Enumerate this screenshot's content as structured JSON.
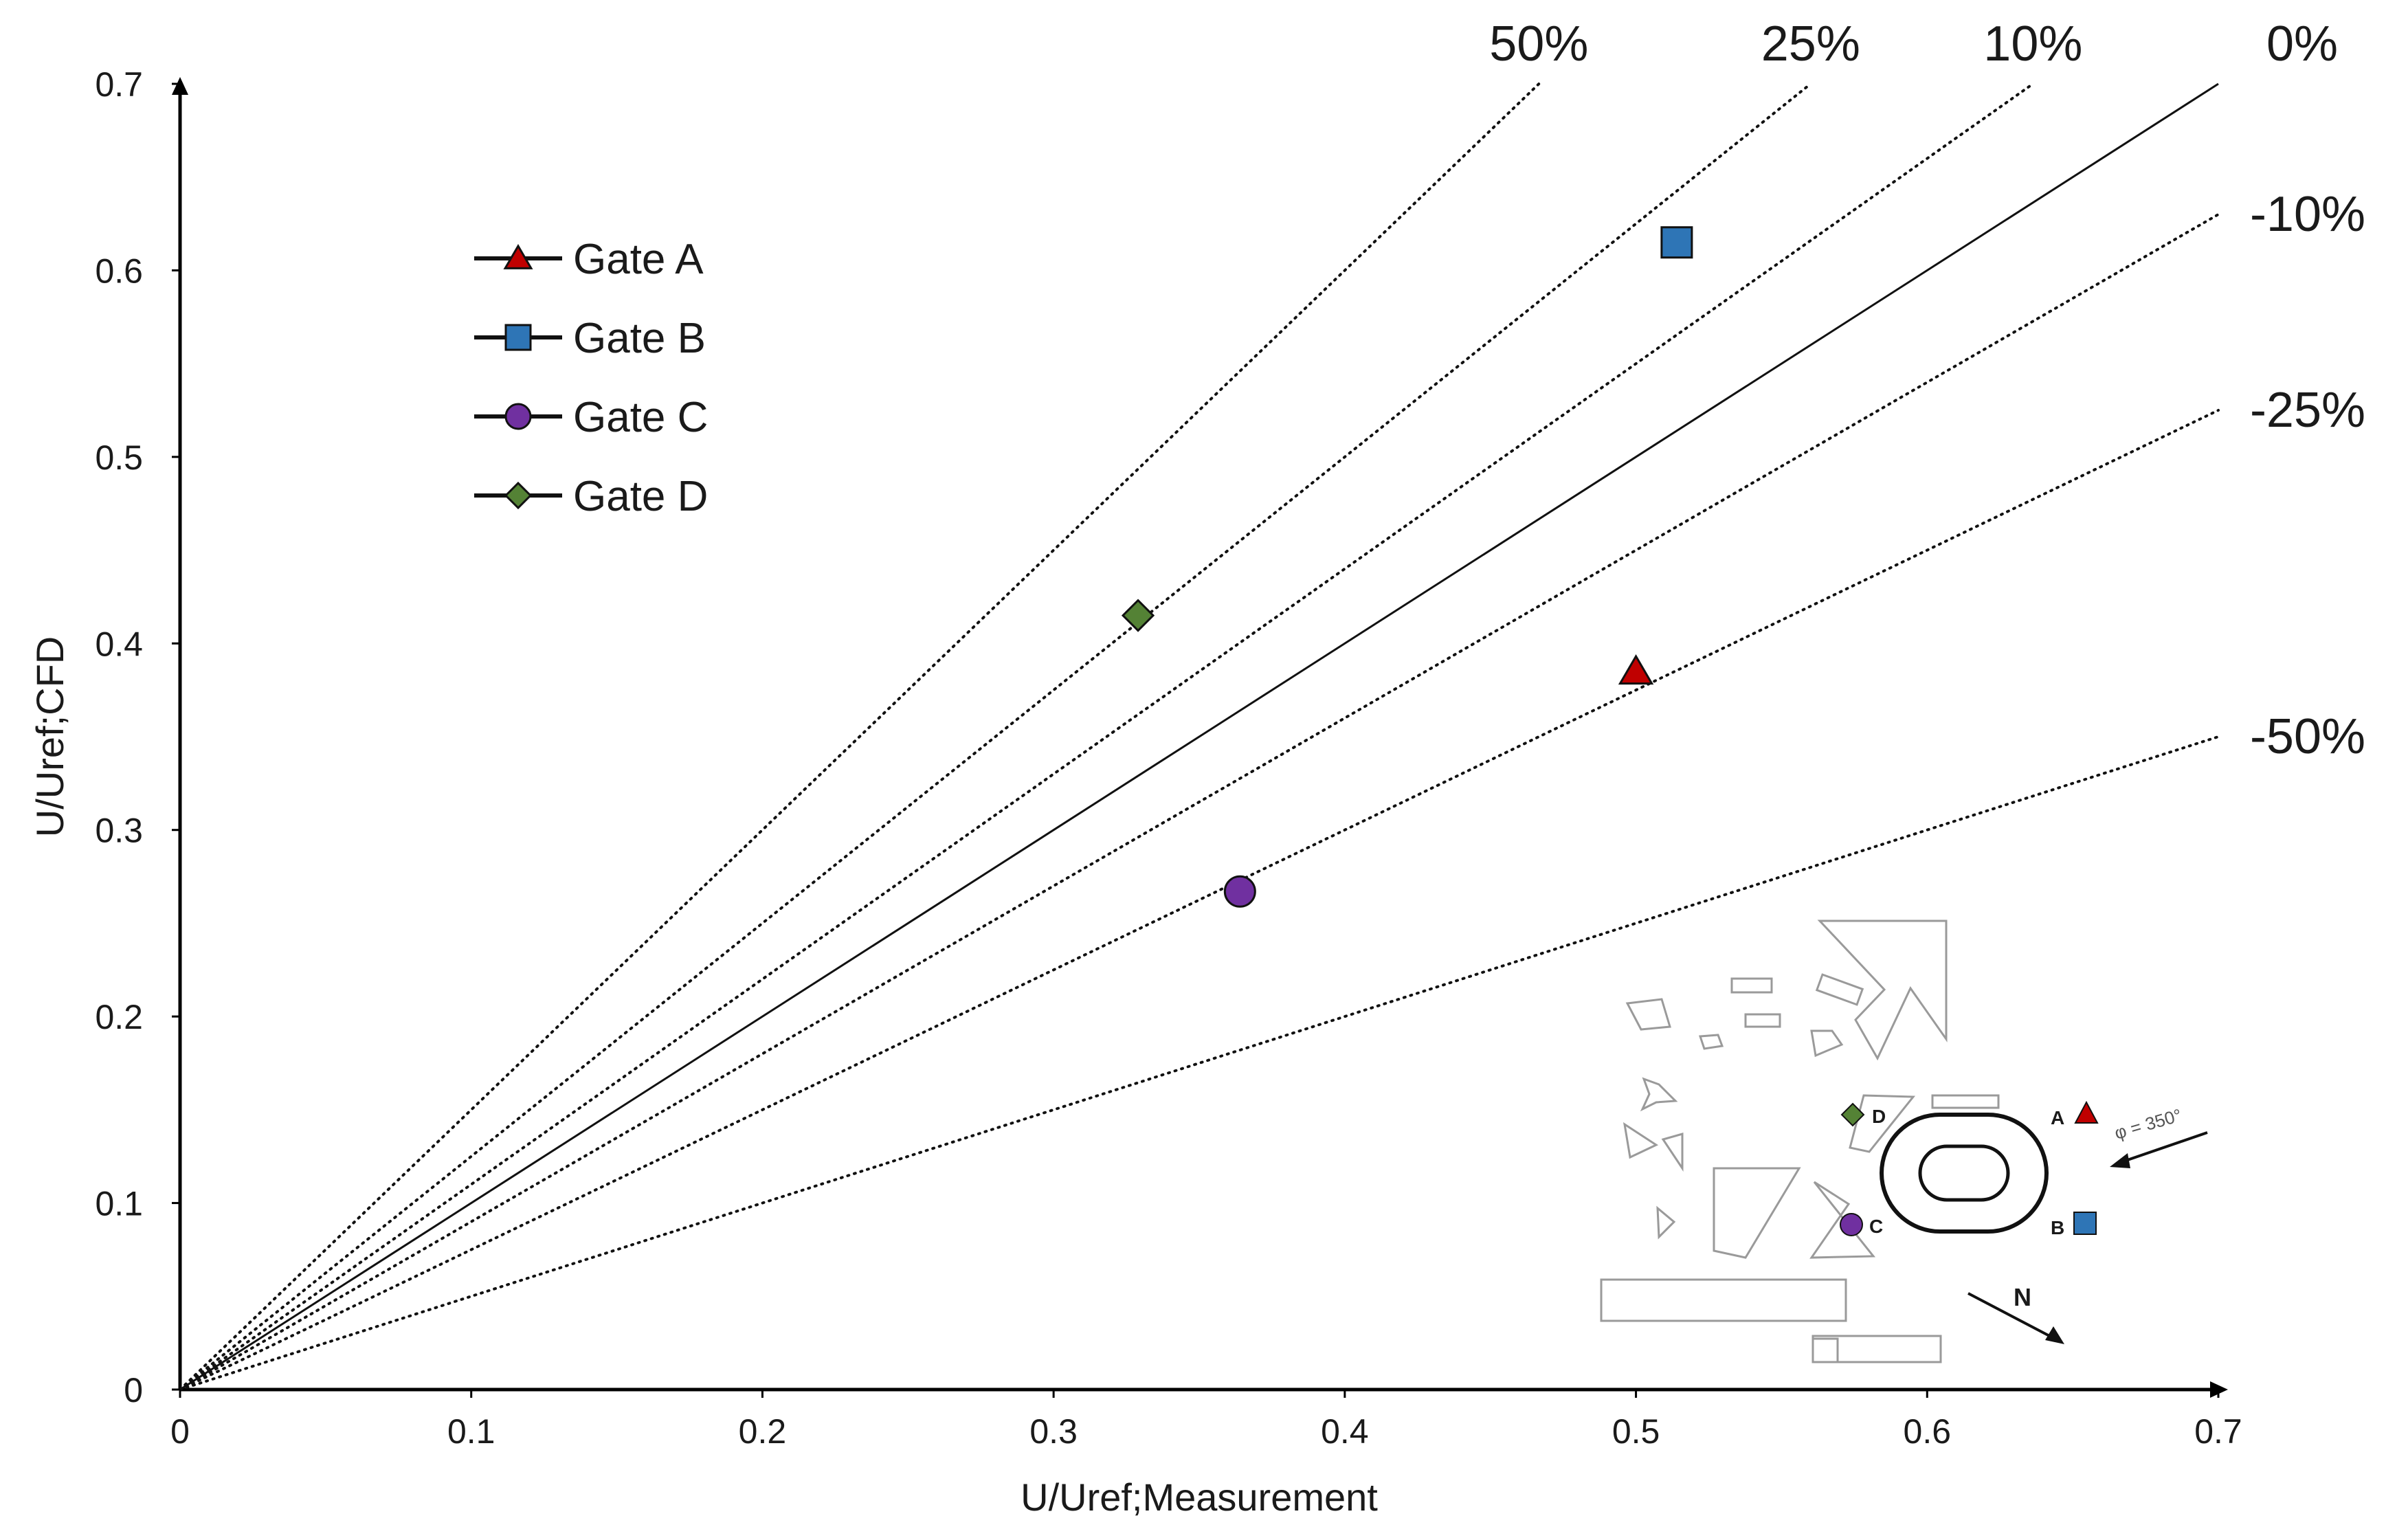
{
  "chart_data": {
    "type": "scatter",
    "xlabel": "U/Uref;Measurement",
    "ylabel": "U/Uref;CFD",
    "xlim": [
      0,
      0.7
    ],
    "ylim": [
      0,
      0.7
    ],
    "xticks": [
      "0",
      "0.1",
      "0.2",
      "0.3",
      "0.4",
      "0.5",
      "0.6",
      "0.7"
    ],
    "yticks": [
      "0",
      "0.1",
      "0.2",
      "0.3",
      "0.4",
      "0.5",
      "0.6",
      "0.7"
    ],
    "grid": false,
    "legend_position": "top-left",
    "series": [
      {
        "name": "Gate A",
        "marker": "triangle",
        "color": "#c00000",
        "x": 0.5,
        "y": 0.385
      },
      {
        "name": "Gate B",
        "marker": "square",
        "color": "#2e75b6",
        "x": 0.514,
        "y": 0.615
      },
      {
        "name": "Gate C",
        "marker": "circle",
        "color": "#7030a0",
        "x": 0.364,
        "y": 0.267
      },
      {
        "name": "Gate D",
        "marker": "diamond",
        "color": "#548235",
        "x": 0.329,
        "y": 0.415
      }
    ],
    "reference_lines": [
      {
        "label": "50%",
        "slope": 1.5,
        "style": "dotted"
      },
      {
        "label": "25%",
        "slope": 1.25,
        "style": "dotted"
      },
      {
        "label": "10%",
        "slope": 1.1,
        "style": "dotted"
      },
      {
        "label": "0%",
        "slope": 1.0,
        "style": "solid"
      },
      {
        "label": "-10%",
        "slope": 0.9,
        "style": "dotted"
      },
      {
        "label": "-25%",
        "slope": 0.75,
        "style": "dotted"
      },
      {
        "label": "-50%",
        "slope": 0.5,
        "style": "dotted"
      }
    ],
    "inset": {
      "description_labels": [
        "A",
        "B",
        "C",
        "D",
        "N",
        "φ = 350°"
      ]
    }
  }
}
